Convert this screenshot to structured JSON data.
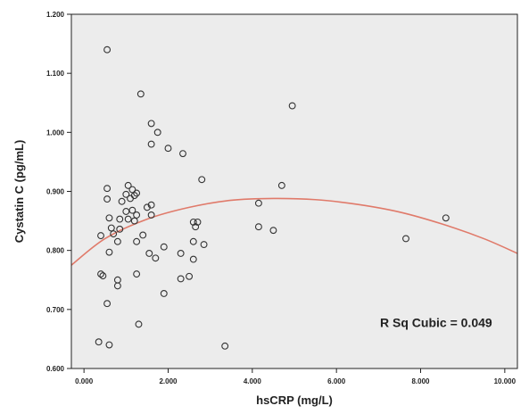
{
  "chart_data": {
    "type": "scatter",
    "xlabel": "hsCRP (mg/L)",
    "ylabel": "Cystatin C (pg/mL)",
    "xlim": [
      -0.3,
      10.3
    ],
    "ylim": [
      0.6,
      1.2
    ],
    "xticks": [
      0,
      2,
      4,
      6,
      8,
      10
    ],
    "xtick_labels": [
      "0.000",
      "2.000",
      "4.000",
      "6.000",
      "8.000",
      "10.000"
    ],
    "yticks": [
      0.6,
      0.7,
      0.8,
      0.9,
      1.0,
      1.1,
      1.2
    ],
    "ytick_labels": [
      "0.600",
      "0.700",
      "0.800",
      "0.900",
      "1.000",
      "1.100",
      "1.200"
    ],
    "annotation": "R Sq Cubic = 0.049",
    "grid": false,
    "colors": {
      "background": "#ececec",
      "point": "#333333",
      "fit_line": "#e07a6a",
      "frame": "#222222"
    },
    "points": [
      {
        "x": 0.55,
        "y": 1.14
      },
      {
        "x": 1.35,
        "y": 1.065
      },
      {
        "x": 4.95,
        "y": 1.045
      },
      {
        "x": 1.6,
        "y": 1.015
      },
      {
        "x": 1.75,
        "y": 1.0
      },
      {
        "x": 1.6,
        "y": 0.98
      },
      {
        "x": 2.0,
        "y": 0.973
      },
      {
        "x": 2.35,
        "y": 0.964
      },
      {
        "x": 2.8,
        "y": 0.92
      },
      {
        "x": 4.7,
        "y": 0.91
      },
      {
        "x": 0.55,
        "y": 0.905
      },
      {
        "x": 1.05,
        "y": 0.91
      },
      {
        "x": 1.15,
        "y": 0.903
      },
      {
        "x": 1.25,
        "y": 0.897
      },
      {
        "x": 1.2,
        "y": 0.893
      },
      {
        "x": 1.0,
        "y": 0.895
      },
      {
        "x": 0.55,
        "y": 0.887
      },
      {
        "x": 1.1,
        "y": 0.888
      },
      {
        "x": 0.9,
        "y": 0.883
      },
      {
        "x": 4.15,
        "y": 0.88
      },
      {
        "x": 1.6,
        "y": 0.877
      },
      {
        "x": 1.5,
        "y": 0.873
      },
      {
        "x": 1.15,
        "y": 0.868
      },
      {
        "x": 1.0,
        "y": 0.866
      },
      {
        "x": 1.25,
        "y": 0.86
      },
      {
        "x": 1.6,
        "y": 0.86
      },
      {
        "x": 0.6,
        "y": 0.855
      },
      {
        "x": 0.85,
        "y": 0.853
      },
      {
        "x": 1.05,
        "y": 0.853
      },
      {
        "x": 1.2,
        "y": 0.85
      },
      {
        "x": 2.6,
        "y": 0.848
      },
      {
        "x": 2.7,
        "y": 0.848
      },
      {
        "x": 2.65,
        "y": 0.84
      },
      {
        "x": 4.15,
        "y": 0.84
      },
      {
        "x": 0.65,
        "y": 0.838
      },
      {
        "x": 0.85,
        "y": 0.836
      },
      {
        "x": 4.5,
        "y": 0.834
      },
      {
        "x": 0.4,
        "y": 0.825
      },
      {
        "x": 0.7,
        "y": 0.828
      },
      {
        "x": 1.4,
        "y": 0.826
      },
      {
        "x": 7.65,
        "y": 0.82
      },
      {
        "x": 1.25,
        "y": 0.815
      },
      {
        "x": 0.8,
        "y": 0.815
      },
      {
        "x": 2.6,
        "y": 0.815
      },
      {
        "x": 2.85,
        "y": 0.81
      },
      {
        "x": 1.9,
        "y": 0.806
      },
      {
        "x": 8.6,
        "y": 0.855
      },
      {
        "x": 0.6,
        "y": 0.797
      },
      {
        "x": 1.55,
        "y": 0.795
      },
      {
        "x": 2.3,
        "y": 0.795
      },
      {
        "x": 1.7,
        "y": 0.787
      },
      {
        "x": 2.6,
        "y": 0.785
      },
      {
        "x": 0.4,
        "y": 0.76
      },
      {
        "x": 0.45,
        "y": 0.757
      },
      {
        "x": 1.25,
        "y": 0.76
      },
      {
        "x": 2.5,
        "y": 0.756
      },
      {
        "x": 2.3,
        "y": 0.752
      },
      {
        "x": 0.8,
        "y": 0.75
      },
      {
        "x": 0.8,
        "y": 0.74
      },
      {
        "x": 1.9,
        "y": 0.727
      },
      {
        "x": 0.55,
        "y": 0.71
      },
      {
        "x": 1.3,
        "y": 0.675
      },
      {
        "x": 0.35,
        "y": 0.645
      },
      {
        "x": 0.6,
        "y": 0.64
      },
      {
        "x": 3.35,
        "y": 0.638
      }
    ],
    "fit_curve": {
      "label": "R Sq Cubic = 0.049",
      "x": [
        -0.3,
        0.5,
        1.5,
        2.5,
        3.5,
        4.5,
        5.5,
        6.5,
        7.5,
        8.5,
        9.5,
        10.3
      ],
      "y": [
        0.775,
        0.82,
        0.853,
        0.873,
        0.885,
        0.888,
        0.886,
        0.878,
        0.865,
        0.845,
        0.82,
        0.795
      ]
    }
  }
}
